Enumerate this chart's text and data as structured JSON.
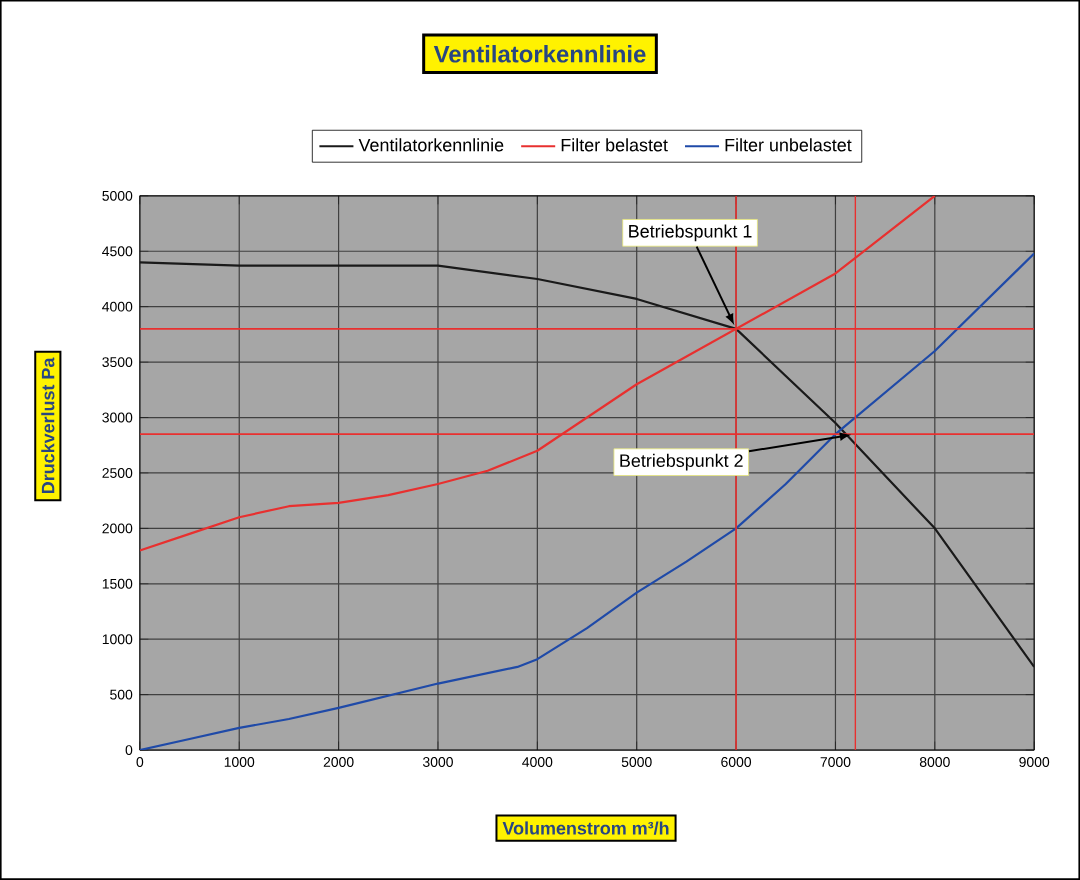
{
  "chart_data": {
    "type": "line",
    "title": "Ventilatorkennlinie",
    "xlabel": "Volumenstrom m³/h",
    "ylabel": "Druckverlust Pa",
    "xlim": [
      0,
      9000
    ],
    "ylim": [
      0,
      5000
    ],
    "xticks": [
      0,
      1000,
      2000,
      3000,
      4000,
      5000,
      6000,
      7000,
      8000,
      9000
    ],
    "yticks": [
      0,
      500,
      1000,
      1500,
      2000,
      2500,
      3000,
      3500,
      4000,
      4500,
      5000
    ],
    "grid": true,
    "legend": "top",
    "marker": "none",
    "line_style": "solid",
    "series": [
      {
        "name": "Ventilatorkennlinie",
        "color": "#1a1a1a",
        "x": [
          0,
          1000,
          2000,
          3000,
          4000,
          5000,
          6000,
          7000,
          8000,
          9000
        ],
        "values": [
          4400,
          4370,
          4370,
          4370,
          4250,
          4070,
          3800,
          2950,
          2000,
          750
        ]
      },
      {
        "name": "Filter belastet",
        "color": "#e8302f",
        "x": [
          0,
          500,
          1000,
          1500,
          2000,
          2500,
          3000,
          3500,
          4000,
          4500,
          5000,
          6000,
          7000,
          7500,
          8000
        ],
        "values": [
          1800,
          1950,
          2100,
          2200,
          2230,
          2300,
          2400,
          2520,
          2700,
          3000,
          3300,
          3800,
          4300,
          4650,
          5000
        ]
      },
      {
        "name": "Filter unbelastet",
        "color": "#1f4aa8",
        "x": [
          0,
          500,
          1000,
          1500,
          2000,
          3000,
          3800,
          4000,
          4500,
          5000,
          5500,
          6000,
          6500,
          7000,
          8000,
          9000
        ],
        "values": [
          0,
          100,
          200,
          280,
          380,
          600,
          750,
          820,
          1100,
          1420,
          1700,
          2000,
          2400,
          2850,
          3600,
          4480
        ]
      }
    ],
    "ref_lines": [
      {
        "axis": "y",
        "value": 3800,
        "color": "#e8302f"
      },
      {
        "axis": "x",
        "value": 6000,
        "color": "#e8302f"
      },
      {
        "axis": "y",
        "value": 2850,
        "color": "#e8302f"
      },
      {
        "axis": "x",
        "value": 7200,
        "color": "#e8302f"
      }
    ],
    "annotations": [
      {
        "text": "Betriebspunkt 1",
        "x": 6000,
        "y": 3800
      },
      {
        "text": "Betriebspunkt 2",
        "x": 7200,
        "y": 2850
      }
    ]
  }
}
